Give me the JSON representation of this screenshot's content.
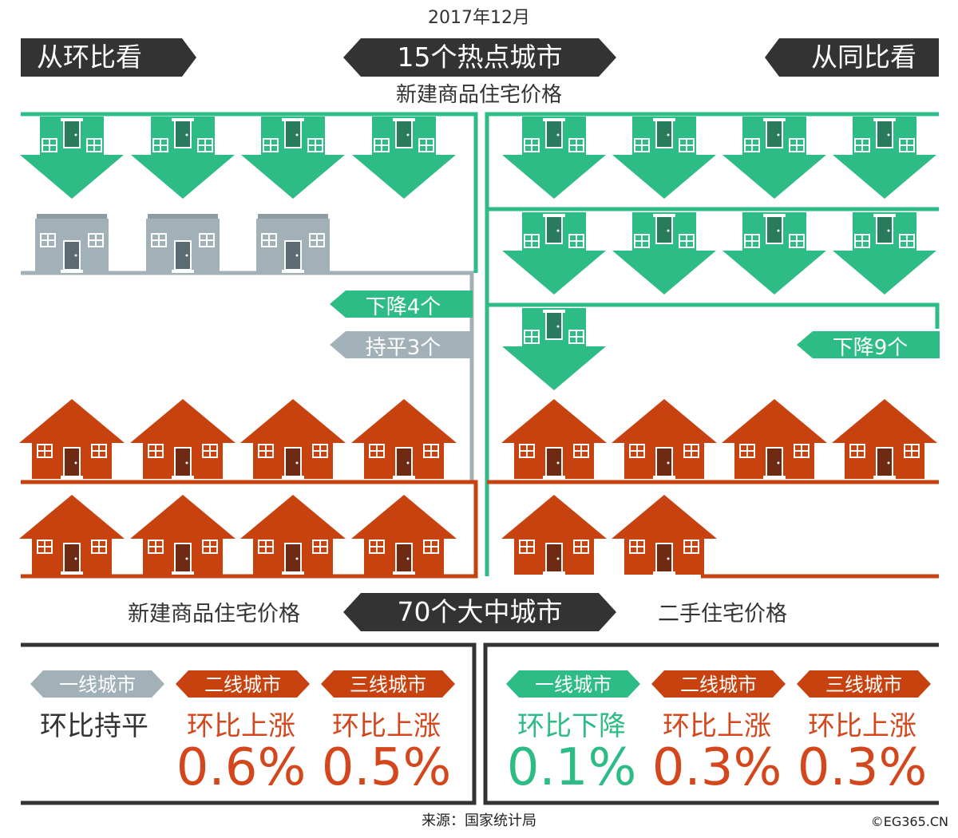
{
  "date": "2017年12月",
  "hot_cities": {
    "title": "15个热点城市",
    "subtitle": "新建商品住宅价格",
    "left_header": "从环比看",
    "right_header": "从同比看",
    "left_down_label": "下降4个",
    "left_flat_label": "持平3个",
    "right_down_label": "下降9个"
  },
  "big_cities": {
    "title": "70个大中城市",
    "new_homes_label": "新建商品住宅价格",
    "second_hand_label": "二手住宅价格",
    "new_homes": [
      {
        "tier": "一线城市",
        "trend": "环比持平",
        "value": "",
        "color": "#333333",
        "tag_color": "#a2b0b8"
      },
      {
        "tier": "二线城市",
        "trend": "环比上涨",
        "value": "0.6%",
        "color": "#d4461c",
        "tag_color": "#c7420f"
      },
      {
        "tier": "三线城市",
        "trend": "环比上涨",
        "value": "0.5%",
        "color": "#d4461c",
        "tag_color": "#c7420f"
      }
    ],
    "second_hand": [
      {
        "tier": "一线城市",
        "trend": "环比下降",
        "value": "0.1%",
        "color": "#2dbb86",
        "tag_color": "#2dbb86"
      },
      {
        "tier": "二线城市",
        "trend": "环比上涨",
        "value": "0.3%",
        "color": "#d4461c",
        "tag_color": "#c7420f"
      },
      {
        "tier": "三线城市",
        "trend": "环比上涨",
        "value": "0.3%",
        "color": "#d4461c",
        "tag_color": "#c7420f"
      }
    ]
  },
  "counts": {
    "left_down": 4,
    "left_flat": 3,
    "left_up": 8,
    "right_down": 9,
    "right_up": 6
  },
  "colors": {
    "green": "#2dbb86",
    "gray": "#a2b0b8",
    "orange": "#c7420f",
    "dark": "#333333"
  },
  "source": "来源：国家统计局",
  "credit": "©EG365.CN"
}
